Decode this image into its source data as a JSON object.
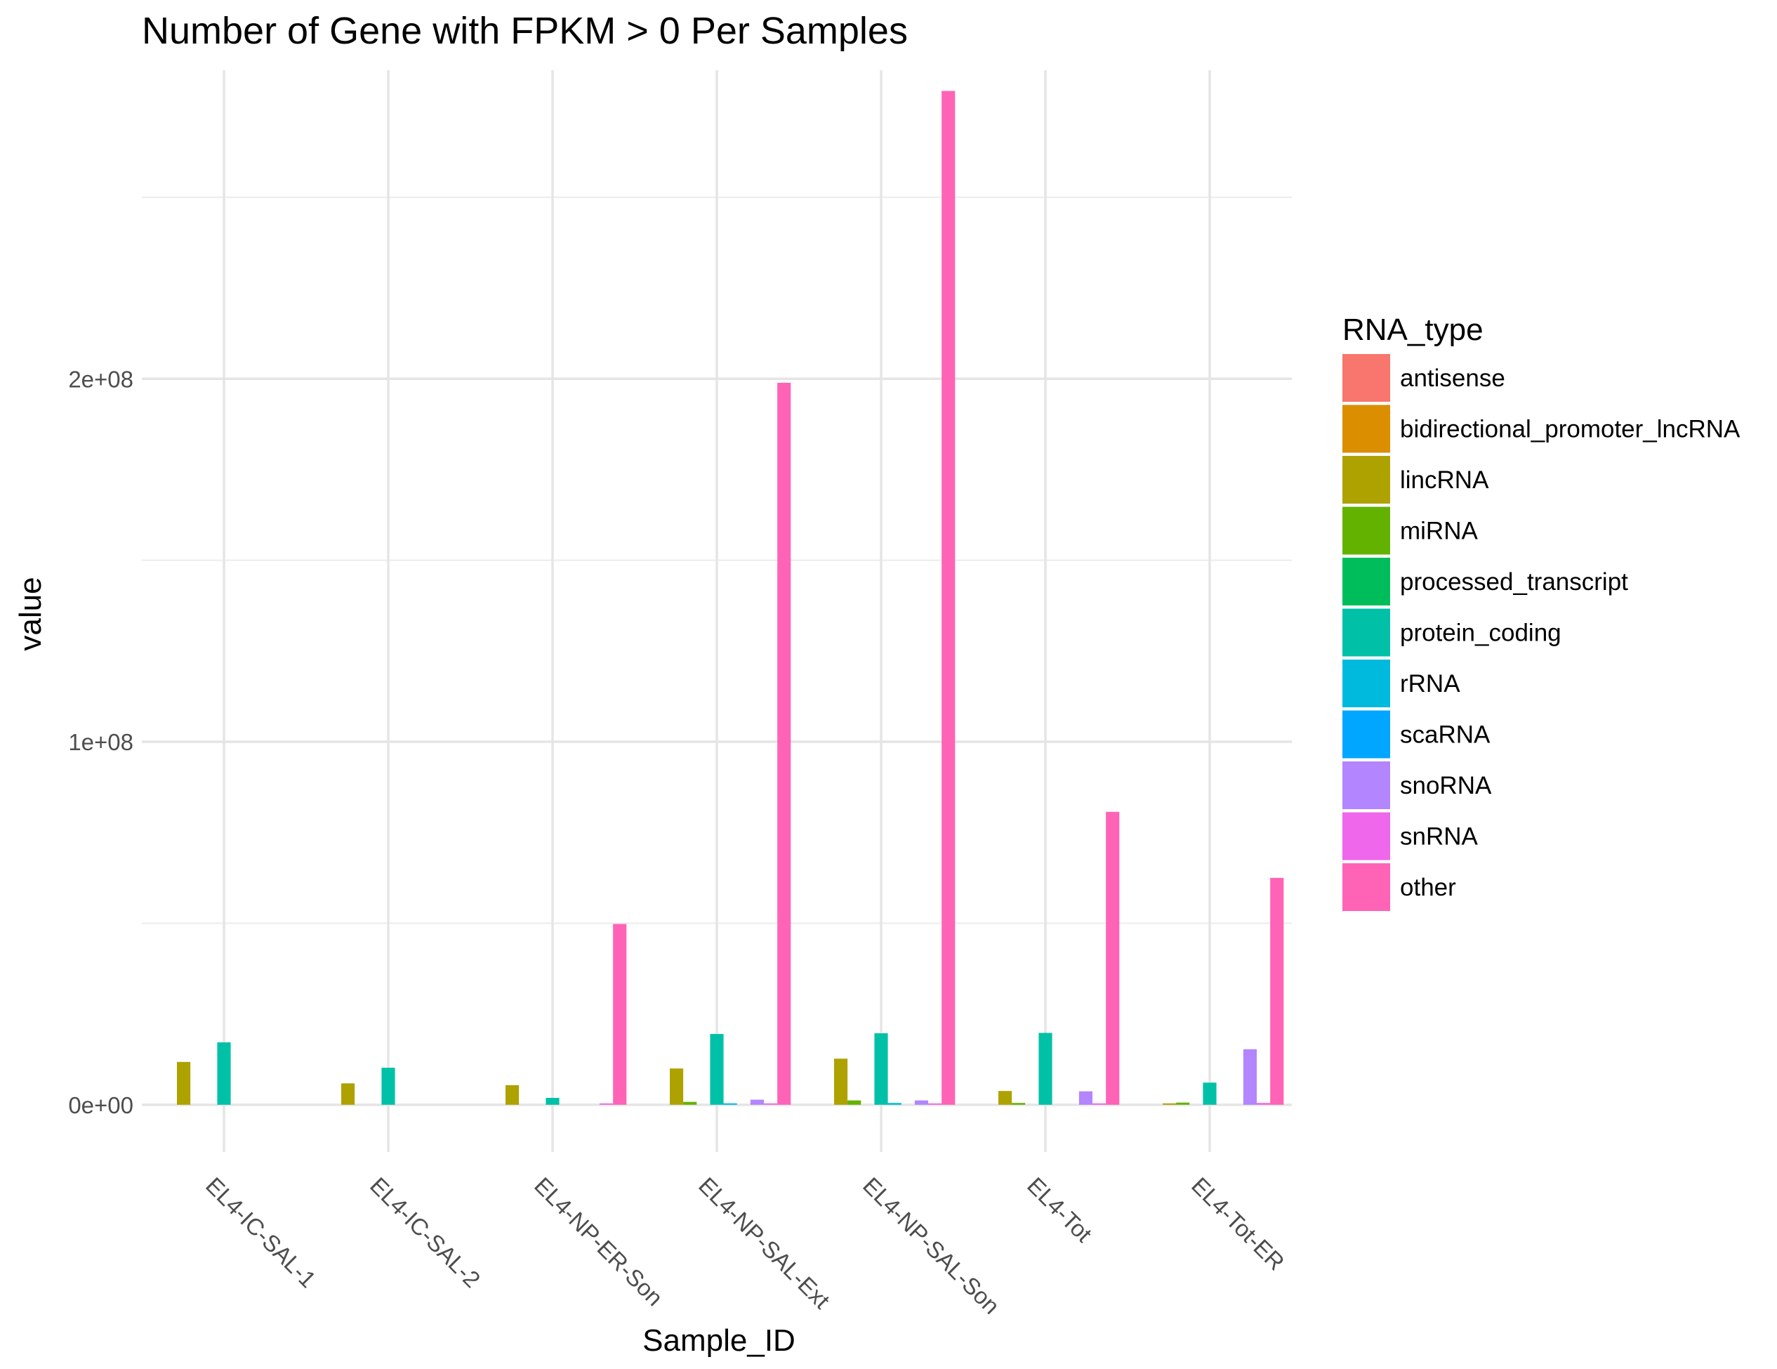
{
  "chart_data": {
    "type": "bar",
    "title": "Number of Gene with FPKM > 0 Per Samples",
    "xlabel": "Sample_ID",
    "ylabel": "value",
    "ylim": [
      -13000000,
      285000000
    ],
    "y_ticks": [
      {
        "value": 0,
        "label": "0e+00"
      },
      {
        "value": 100000000,
        "label": "1e+08"
      },
      {
        "value": 200000000,
        "label": "2e+08"
      }
    ],
    "grid": true,
    "legend_position": "right",
    "legend_title": "RNA_type",
    "categories": [
      "EL4-IC-SAL-1",
      "EL4-IC-SAL-2",
      "EL4-NP-ER-Son",
      "EL4-NP-SAL-Ext",
      "EL4-NP-SAL-Son",
      "EL4-Tot",
      "EL4-Tot-ER"
    ],
    "series": [
      {
        "name": "antisense",
        "color": "#F8766D",
        "values": [
          0,
          0,
          0,
          0,
          0,
          0,
          0
        ]
      },
      {
        "name": "bidirectional_promoter_lncRNA",
        "color": "#DB8E00",
        "values": [
          0,
          0,
          0,
          0,
          0,
          0,
          0
        ]
      },
      {
        "name": "lincRNA",
        "color": "#AEA200",
        "values": [
          11800000,
          5900000,
          5400000,
          10000000,
          12700000,
          3800000,
          300000
        ]
      },
      {
        "name": "miRNA",
        "color": "#64B200",
        "values": [
          0,
          0,
          0,
          800000,
          1200000,
          500000,
          600000
        ]
      },
      {
        "name": "processed_transcript",
        "color": "#00BD5C",
        "values": [
          0,
          0,
          0,
          0,
          0,
          0,
          0
        ]
      },
      {
        "name": "protein_coding",
        "color": "#00C1A7",
        "values": [
          17200000,
          10200000,
          1900000,
          19500000,
          19700000,
          19800000,
          6100000
        ]
      },
      {
        "name": "rRNA",
        "color": "#00BADE",
        "values": [
          0,
          0,
          0,
          400000,
          500000,
          0,
          0
        ]
      },
      {
        "name": "scaRNA",
        "color": "#00A6FF",
        "values": [
          0,
          0,
          0,
          0,
          0,
          0,
          0
        ]
      },
      {
        "name": "snoRNA",
        "color": "#B385FF",
        "values": [
          0,
          0,
          0,
          1400000,
          1200000,
          3700000,
          15300000
        ]
      },
      {
        "name": "snRNA",
        "color": "#EF67EB",
        "values": [
          0,
          0,
          300000,
          300000,
          300000,
          300000,
          500000
        ]
      },
      {
        "name": "other",
        "color": "#FF63B6",
        "values": [
          0,
          0,
          49800000,
          198900000,
          279300000,
          80700000,
          62500000
        ]
      }
    ]
  }
}
